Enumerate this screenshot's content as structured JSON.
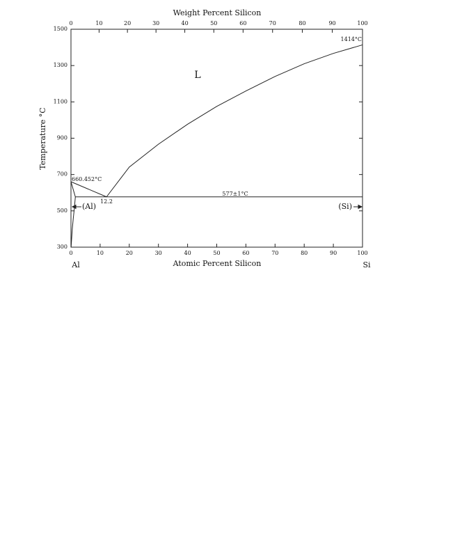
{
  "chart_data": {
    "type": "line",
    "title": "Weight Percent Silicon",
    "xlabel": "Atomic Percent Silicon",
    "ylabel": "Temperature °C",
    "components": [
      "Al",
      "Si"
    ],
    "xlim": [
      0,
      100
    ],
    "xticks": [
      0,
      10,
      20,
      30,
      40,
      50,
      60,
      70,
      80,
      90,
      100
    ],
    "x2lim": [
      0,
      100
    ],
    "x2ticks": [
      0,
      10,
      20,
      30,
      40,
      50,
      60,
      70,
      80,
      90,
      100
    ],
    "ylim": [
      300,
      1500
    ],
    "yticks": [
      300,
      500,
      700,
      900,
      1100,
      1300,
      1500
    ],
    "color": "#222222",
    "series": [
      {
        "x": [
          0,
          12.2
        ],
        "values": [
          660.452,
          577
        ]
      },
      {
        "x": [
          12.2,
          20,
          30,
          40,
          50,
          60,
          70,
          80,
          90,
          100
        ],
        "values": [
          577,
          741,
          867,
          977,
          1075,
          1160,
          1240,
          1310,
          1367,
          1414
        ]
      },
      {
        "x": [
          1.5,
          100
        ],
        "values": [
          577,
          577
        ]
      },
      {
        "x": [
          0,
          1.5
        ],
        "values": [
          660.452,
          577
        ]
      },
      {
        "x": [
          1.5,
          1.2,
          0.8,
          0.45,
          0.2,
          0.05
        ],
        "values": [
          577,
          520,
          460,
          400,
          340,
          300
        ]
      }
    ],
    "annotations": [
      "L",
      "660.452°C",
      "12.2",
      "577±1°C",
      "1414°C",
      "(Al)",
      "(Si)"
    ]
  }
}
